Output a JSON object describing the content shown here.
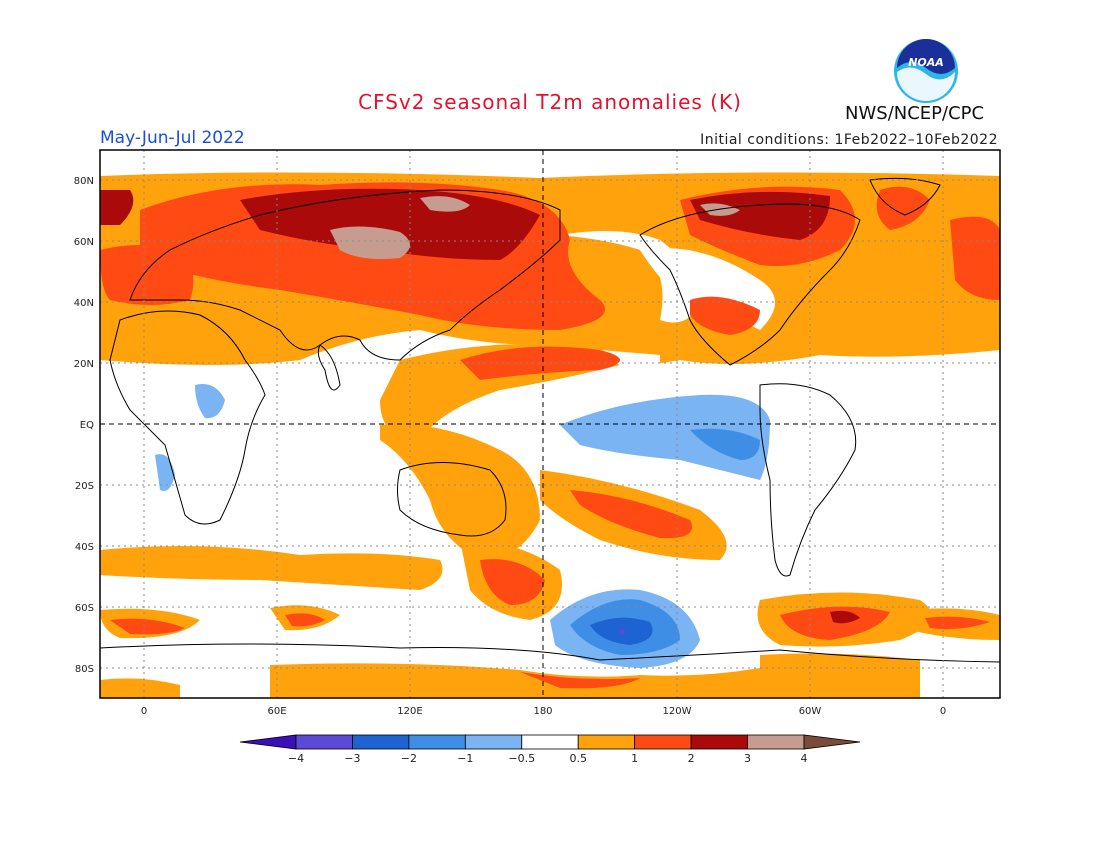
{
  "title": "CFSv2 seasonal T2m anomalies (K)",
  "organization": "NWS/NCEP/CPC",
  "logo_text": "NOAA",
  "season": "May-Jun-Jul 2022",
  "initial_conditions": "Initial conditions: 1Feb2022–10Feb2022",
  "lat_labels": [
    "80N",
    "60N",
    "40N",
    "20N",
    "EQ",
    "20S",
    "40S",
    "60S",
    "80S"
  ],
  "lon_labels": [
    "0",
    "60E",
    "120E",
    "180",
    "120W",
    "60W",
    "0"
  ],
  "colorbar": {
    "labels": [
      "−4",
      "−3",
      "−2",
      "−1",
      "−0.5",
      "0.5",
      "1",
      "2",
      "3",
      "4"
    ],
    "colors": [
      "#3a10b8",
      "#5a4ad6",
      "#1d63d2",
      "#3f8ee6",
      "#7ab4f2",
      "#ffffff",
      "#ffa20c",
      "#ff4a14",
      "#aa0a0a",
      "#c79c90",
      "#7a4a3a"
    ]
  },
  "levels": {
    "below_4": "#3a10b8",
    "minus_3_to_4": "#5a4ad6",
    "minus_2_to_3": "#1d63d2",
    "minus_1_to_2": "#3f8ee6",
    "minus_05_to_1": "#7ab4f2",
    "neutral": "#ffffff",
    "plus_05_to_1": "#ffa20c",
    "plus_1_to_2": "#ff4a14",
    "plus_2_to_3": "#aa0a0a",
    "plus_3_to_4": "#c79c90",
    "above_4": "#7a4a3a"
  }
}
